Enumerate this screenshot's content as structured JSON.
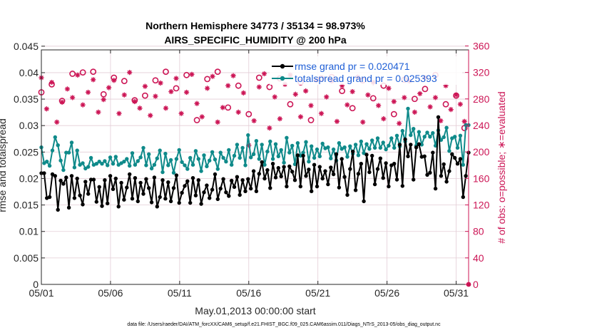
{
  "chart_data": {
    "type": "line",
    "title_line1": "Northern Hemisphere 34773 / 35134 = 98.973%",
    "title_line2": "AIRS_SPECIFIC_HUMIDITY @ 200 hPa",
    "xlabel": "May.01,2013 00:00:00 start",
    "ylabel_left": "rmse and totalspread",
    "ylabel_right": "# of obs: o=possible; ∗=evaluated",
    "footer": "data file: /Users/raeder/DAI/ATM_forcXX/CAM6_setup/f.e21.FHIST_BGC.f09_025.CAM6assim.011/Diags_NTrS_2013-05/obs_diag_output.nc",
    "x_ticks": [
      "05/01",
      "05/06",
      "05/11",
      "05/16",
      "05/21",
      "05/26",
      "05/31"
    ],
    "x_tick_days": [
      0,
      5,
      10,
      15,
      20,
      25,
      30
    ],
    "xlim": [
      0,
      30.9
    ],
    "y_left_ticks": [
      "0",
      "0.005",
      "0.01",
      "0.015",
      "0.02",
      "0.025",
      "0.03",
      "0.035",
      "0.04",
      "0.045"
    ],
    "y_left_lim": [
      0,
      0.0443
    ],
    "y_right_ticks": [
      "0",
      "40",
      "80",
      "120",
      "160",
      "200",
      "240",
      "280",
      "320",
      "360"
    ],
    "y_right_lim": [
      0,
      354
    ],
    "colors": {
      "rmse": "#000000",
      "spread": "#0f8a8a",
      "obs": "#cc1555",
      "grid": "#e3cdd6",
      "axis": "#262626",
      "legend_text": "#1f5fd6"
    },
    "series": [
      {
        "name": "rmse grand pr = 0.020471",
        "legend": "rmse grand pr = 0.020471",
        "values": [
          0.021,
          0.021,
          0.0163,
          0.0165,
          0.0208,
          0.0205,
          0.0141,
          0.0196,
          0.019,
          0.0202,
          0.0145,
          0.0205,
          0.0163,
          0.02,
          0.0168,
          0.0151,
          0.0194,
          0.0171,
          0.0198,
          0.0198,
          0.0156,
          0.0184,
          0.0148,
          0.0197,
          0.0153,
          0.0205,
          0.018,
          0.02,
          0.0147,
          0.0192,
          0.016,
          0.0183,
          0.0208,
          0.0162,
          0.0201,
          0.0157,
          0.0192,
          0.0171,
          0.0199,
          0.0182,
          0.0155,
          0.0202,
          0.0147,
          0.0165,
          0.0197,
          0.0162,
          0.0193,
          0.0157,
          0.0182,
          0.0206,
          0.0154,
          0.0173,
          0.0186,
          0.0195,
          0.0154,
          0.0201,
          0.0168,
          0.0197,
          0.0152,
          0.0174,
          0.0187,
          0.0163,
          0.0179,
          0.0208,
          0.0161,
          0.0181,
          0.0199,
          0.0174,
          0.0167,
          0.0196,
          0.0184,
          0.0203,
          0.0169,
          0.0197,
          0.0176,
          0.0199,
          0.0181,
          0.0214,
          0.0176,
          0.0209,
          0.0231,
          0.02,
          0.0216,
          0.0182,
          0.0228,
          0.0202,
          0.022,
          0.0204,
          0.0222,
          0.0185,
          0.0223,
          0.0213,
          0.0197,
          0.0244,
          0.0185,
          0.0243,
          0.0205,
          0.0217,
          0.0176,
          0.0226,
          0.0185,
          0.0222,
          0.02,
          0.0214,
          0.0189,
          0.0221,
          0.0208,
          0.0246,
          0.0183,
          0.0237,
          0.0203,
          0.0169,
          0.0218,
          0.0251,
          0.0178,
          0.0209,
          0.0228,
          0.0157,
          0.0245,
          0.0212,
          0.0243,
          0.0189,
          0.0218,
          0.0238,
          0.0201,
          0.0229,
          0.0185,
          0.0225,
          0.0228,
          0.0198,
          0.0264,
          0.0186,
          0.0274,
          0.0242,
          0.0264,
          0.0198,
          0.0259,
          0.0265,
          0.0241,
          0.0242,
          0.0207,
          0.0211,
          0.0249,
          0.0181,
          0.0316,
          0.0205,
          0.0227,
          0.0194,
          0.0214,
          0.0246,
          0.0239,
          0.0228,
          0.0237,
          0.0165,
          0.0205,
          0.0249
        ]
      },
      {
        "name": "totalspread grand pr = 0.025393",
        "legend": "totalspread grand pr = 0.025393",
        "values": [
          0.0259,
          0.0229,
          0.0232,
          0.0224,
          0.0253,
          0.0278,
          0.0263,
          0.0234,
          0.0216,
          0.0249,
          0.0249,
          0.0268,
          0.0221,
          0.0253,
          0.0226,
          0.0229,
          0.0219,
          0.0222,
          0.0239,
          0.0226,
          0.0228,
          0.0232,
          0.0228,
          0.0233,
          0.0225,
          0.024,
          0.0228,
          0.0241,
          0.0226,
          0.0229,
          0.0232,
          0.0237,
          0.0224,
          0.0248,
          0.0226,
          0.0233,
          0.024,
          0.0258,
          0.0225,
          0.0246,
          0.0219,
          0.0226,
          0.0238,
          0.0253,
          0.0212,
          0.0247,
          0.0225,
          0.0235,
          0.0211,
          0.0237,
          0.0254,
          0.0231,
          0.0225,
          0.0218,
          0.0239,
          0.0226,
          0.0252,
          0.0237,
          0.0214,
          0.0244,
          0.0223,
          0.0234,
          0.025,
          0.0236,
          0.0218,
          0.0249,
          0.0239,
          0.0232,
          0.0254,
          0.0226,
          0.0243,
          0.0264,
          0.0239,
          0.0258,
          0.0225,
          0.0282,
          0.024,
          0.0246,
          0.0271,
          0.0237,
          0.0264,
          0.0226,
          0.0251,
          0.027,
          0.0237,
          0.0265,
          0.0242,
          0.0254,
          0.023,
          0.0277,
          0.0249,
          0.0262,
          0.0227,
          0.0267,
          0.0243,
          0.0249,
          0.0269,
          0.0232,
          0.0261,
          0.0239,
          0.0255,
          0.0242,
          0.0266,
          0.0257,
          0.0259,
          0.0238,
          0.0255,
          0.0234,
          0.0267,
          0.0256,
          0.0259,
          0.0241,
          0.0261,
          0.0247,
          0.0264,
          0.0244,
          0.027,
          0.0248,
          0.0265,
          0.0256,
          0.0272,
          0.0258,
          0.0276,
          0.0258,
          0.0268,
          0.0255,
          0.0262,
          0.0276,
          0.0258,
          0.0281,
          0.0261,
          0.029,
          0.027,
          0.0332,
          0.0282,
          0.0294,
          0.0262,
          0.0288,
          0.0264,
          0.0279,
          0.0287,
          0.0279,
          0.0286,
          0.0262,
          0.0291,
          0.0273,
          0.0278,
          0.0296,
          0.0252,
          0.0276,
          0.0279,
          0.0258,
          0.0281,
          0.0226,
          0.0301,
          0.0301
        ]
      }
    ],
    "obs_possible": {
      "name": "possible",
      "x": [
        0.0,
        0.75,
        1.5,
        2.25,
        3.0,
        3.75,
        4.5,
        5.25,
        6.0,
        6.75,
        7.5,
        8.25,
        9.0,
        9.75,
        10.5,
        11.25,
        12.0,
        12.75,
        13.5,
        14.25,
        15.0,
        15.75,
        16.5,
        17.25,
        18.0,
        18.75,
        19.5,
        20.25,
        21.0,
        21.75,
        22.5,
        23.25,
        24.0,
        24.75,
        25.5,
        26.25,
        27.0,
        27.75,
        28.5,
        29.25,
        30.0,
        30.6
      ],
      "y": [
        290,
        302,
        277,
        318,
        320,
        321,
        287,
        312,
        307,
        278,
        285,
        308,
        321,
        296,
        316,
        248,
        310,
        321,
        267,
        300,
        257,
        312,
        298,
        311,
        272,
        305,
        248,
        311,
        313,
        292,
        266,
        308,
        281,
        300,
        257,
        309,
        280,
        295,
        316,
        272,
        285,
        236
      ]
    },
    "obs_evaluated": {
      "name": "evaluated",
      "x": [
        0.0,
        0.38,
        0.75,
        1.12,
        1.5,
        1.88,
        2.25,
        2.62,
        3.0,
        3.38,
        3.75,
        4.12,
        4.5,
        4.88,
        5.25,
        5.62,
        6.0,
        6.38,
        6.75,
        7.12,
        7.5,
        7.88,
        8.25,
        8.62,
        9.0,
        9.38,
        9.75,
        10.12,
        10.5,
        10.88,
        11.25,
        11.62,
        12.0,
        12.38,
        12.75,
        13.12,
        13.5,
        13.88,
        14.25,
        14.62,
        15.0,
        15.38,
        15.75,
        16.12,
        16.5,
        16.88,
        17.25,
        17.62,
        18.0,
        18.38,
        18.75,
        19.12,
        19.5,
        19.88,
        20.25,
        20.62,
        21.0,
        21.38,
        21.75,
        22.12,
        22.5,
        22.88,
        23.25,
        23.62,
        24.0,
        24.38,
        24.75,
        25.12,
        25.5,
        25.88,
        26.25,
        26.62,
        27.0,
        27.38,
        27.75,
        28.12,
        28.5,
        28.88,
        29.25,
        29.62,
        30.0,
        30.3,
        30.6
      ],
      "y": [
        312,
        265,
        305,
        245,
        275,
        295,
        282,
        316,
        271,
        290,
        309,
        260,
        279,
        297,
        308,
        258,
        286,
        320,
        276,
        266,
        299,
        255,
        284,
        304,
        266,
        291,
        311,
        258,
        290,
        317,
        273,
        253,
        296,
        314,
        245,
        267,
        300,
        315,
        260,
        289,
        210,
        247,
        298,
        318,
        236,
        283,
        250,
        302,
        316,
        287,
        253,
        292,
        270,
        308,
        258,
        283,
        307,
        246,
        300,
        271,
        291,
        313,
        245,
        286,
        305,
        270,
        250,
        296,
        276,
        243,
        282,
        307,
        260,
        288,
        312,
        268,
        282,
        247,
        300,
        264,
        286,
        272,
        246
      ]
    }
  }
}
